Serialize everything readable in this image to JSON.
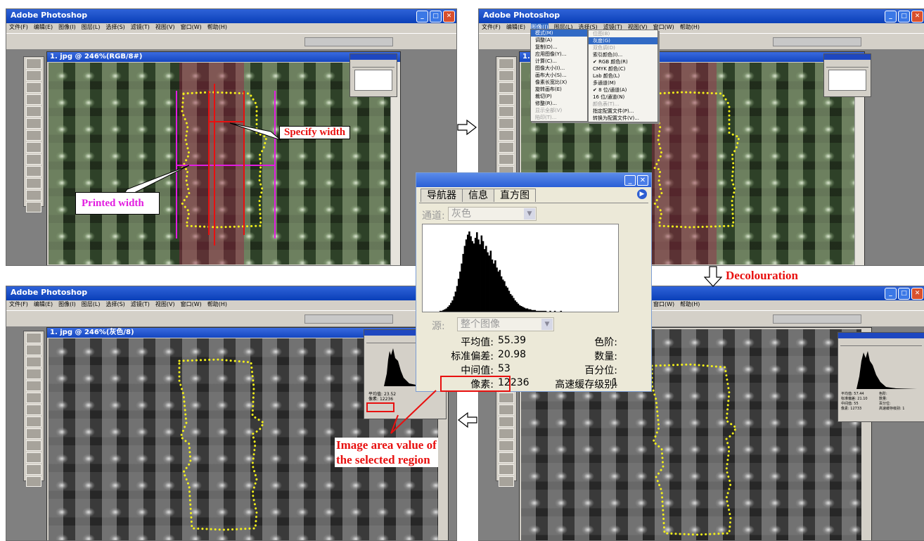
{
  "app_title": "Adobe Photoshop",
  "menu_color": [
    "文件(F)",
    "编辑(E)",
    "图像(I)",
    "图层(L)",
    "选择(S)",
    "滤镜(T)",
    "视图(V)",
    "窗口(W)",
    "帮助(H)"
  ],
  "menu_gray": [
    "文件(F)",
    "编辑(E)",
    "图像(I)",
    "图层(L)",
    "选择(S)",
    "滤镜(T)",
    "视图(V)",
    "窗口(W)",
    "帮助(H)"
  ],
  "menu_right_visible": [
    "窗口(W)",
    "帮助(H)"
  ],
  "doc_title_color": "1. jpg @ 246%(RGB/8#)",
  "doc_title_gray": "1. jpg @ 246%(灰色/8)",
  "image_menu": {
    "items": [
      "模式(M)",
      "调整(A)",
      "复制(D)...",
      "应用图像(Y)...",
      "计算(C)...",
      "图像大小(I)...",
      "画布大小(S)...",
      "像素长宽比(X)",
      "旋转画布(E)",
      "裁切(P)",
      "修整(R)...",
      "显示全部(V)",
      "陷印(T)..."
    ],
    "selected": "模式(M)"
  },
  "mode_submenu": {
    "items": [
      "位图(B)",
      "灰度(G)",
      "双色调(D)",
      "索引颜色(I)...",
      "✔ RGB 颜色(R)",
      "CMYK 颜色(C)",
      "Lab 颜色(L)",
      "多通道(M)",
      "✔ 8 位/通道(A)",
      "16 位/通道(N)",
      "颜色表(T)...",
      "指定配置文件(P)...",
      "转换为配置文件(V)..."
    ],
    "selected": "灰度(G)"
  },
  "histogram_panel": {
    "tabs": [
      "导航器",
      "信息",
      "直方图"
    ],
    "active_tab": "直方图",
    "channel_label": "通道:",
    "channel_value": "灰色",
    "source_label": "源:",
    "source_value": "整个图像",
    "stats_left": [
      {
        "label": "平均值:",
        "value": "55.39"
      },
      {
        "label": "标准偏差:",
        "value": "20.98"
      },
      {
        "label": "中间值:",
        "value": "53"
      },
      {
        "label": "像素:",
        "value": "12236"
      }
    ],
    "stats_right": [
      "色阶:",
      "数量:",
      "百分位:",
      "高速缓存级别:"
    ],
    "cache_level": "1"
  },
  "histogram_bins": [
    0,
    0,
    0,
    0,
    0,
    0,
    0,
    0,
    0,
    0,
    0,
    1,
    1,
    2,
    3,
    4,
    6,
    8,
    11,
    14,
    19,
    25,
    32,
    41,
    50,
    60,
    72,
    82,
    90,
    96,
    100,
    94,
    88,
    85,
    92,
    99,
    90,
    84,
    95,
    88,
    78,
    82,
    74,
    70,
    76,
    65,
    60,
    64,
    55,
    50,
    52,
    44,
    40,
    38,
    32,
    30,
    26,
    22,
    20,
    17,
    14,
    12,
    10,
    8,
    7,
    6,
    5,
    4,
    4,
    3,
    3,
    2,
    2,
    2,
    1,
    1,
    1,
    1,
    1,
    1,
    1,
    0,
    0,
    1,
    0,
    0,
    1,
    0,
    0,
    0,
    1,
    0,
    0,
    0,
    0,
    0,
    0,
    0,
    0,
    0,
    0,
    0,
    0,
    0,
    0,
    0,
    0,
    0,
    0,
    0,
    0,
    0,
    0,
    0,
    0,
    0,
    0,
    0,
    0,
    0,
    0,
    0,
    0,
    0,
    0,
    0,
    0,
    0
  ],
  "mini_histogram_left": {
    "mean": "23.52",
    "pixels": "12236"
  },
  "mini_histogram_right": {
    "mean": "57.44",
    "std": "21.10",
    "median": "55",
    "pixels": "12733",
    "cache": "1"
  },
  "annotations": {
    "specify_width": "Specify width",
    "printed_width": "Printed width",
    "decolouration": "Decolouration",
    "image_area_line1": "Image area value of",
    "image_area_line2": "the selected region"
  },
  "colors": {
    "annotation_red": "#e8100f",
    "annotation_magenta": "#e21ce0",
    "selection_yellow": "#f2ef1a",
    "xp_blue": "#0a3fb8"
  }
}
